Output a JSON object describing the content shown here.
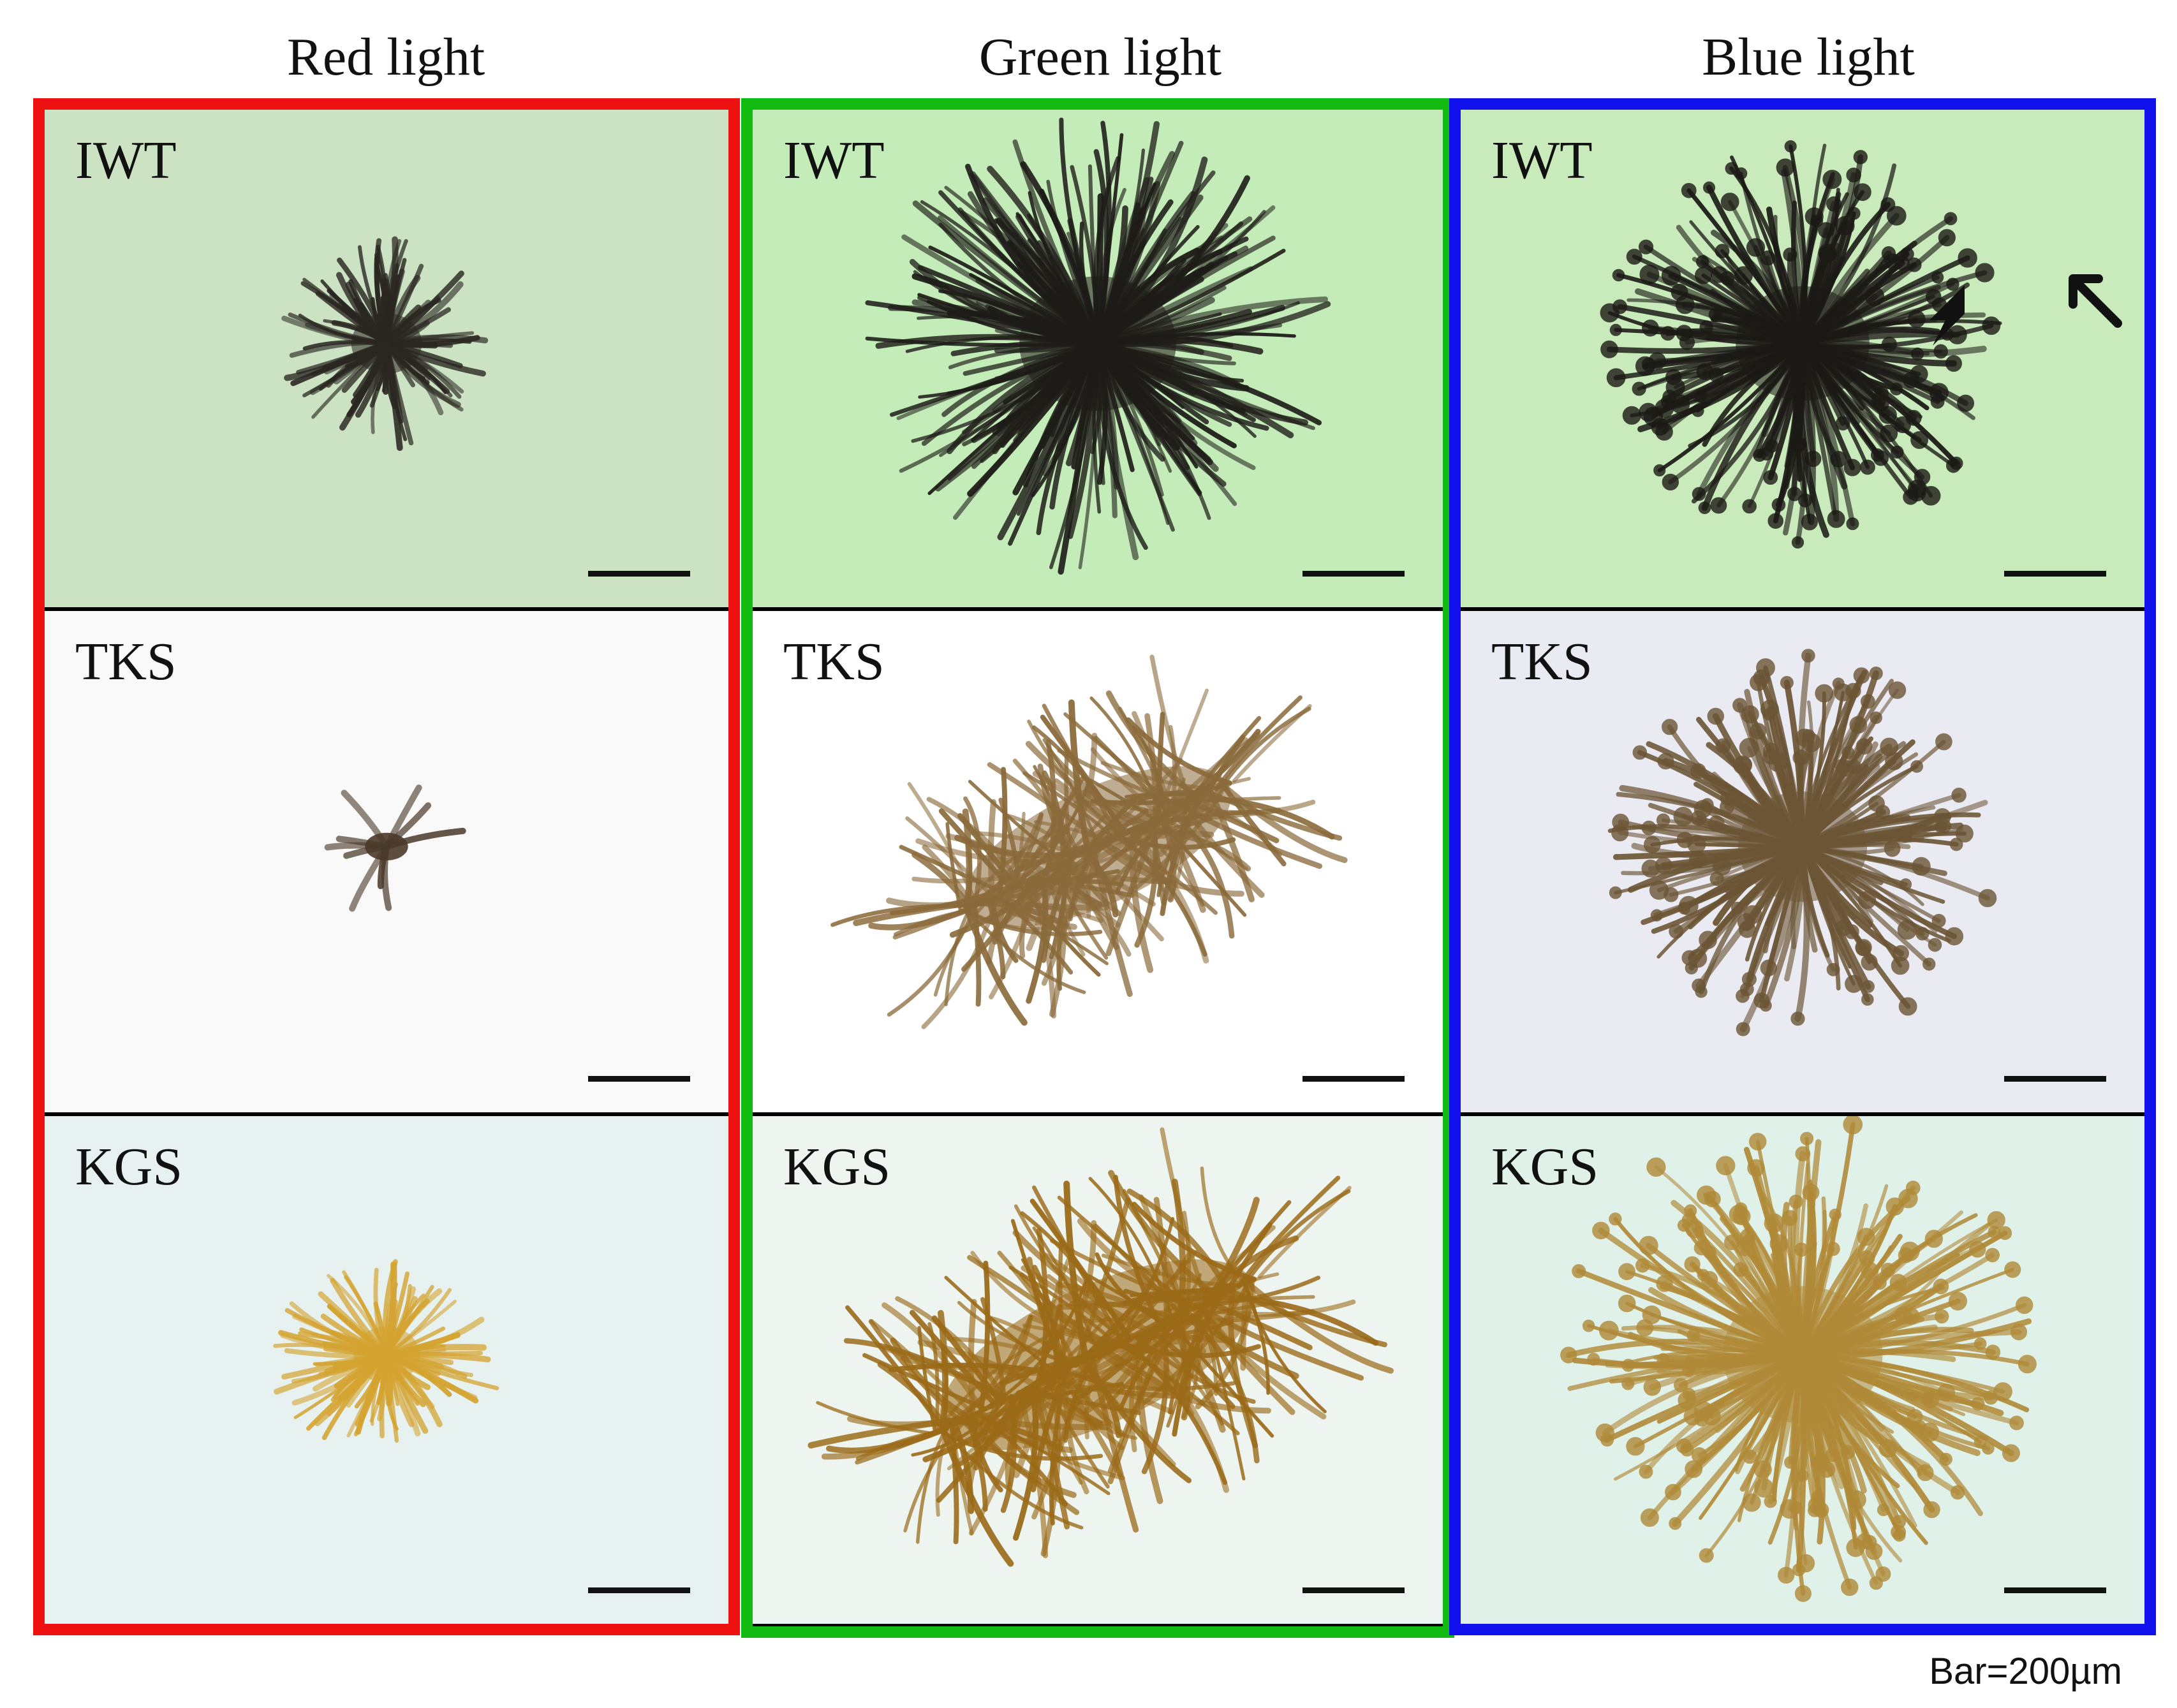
{
  "columns": [
    {
      "key": "red",
      "title": "Red light",
      "frame_color": "#ee1111"
    },
    {
      "key": "green",
      "title": "Green light",
      "frame_color": "#11bb11"
    },
    {
      "key": "blue",
      "title": "Blue light",
      "frame_color": "#1111ee"
    }
  ],
  "rows": [
    "IWT",
    "TKS",
    "KGS"
  ],
  "panels": [
    {
      "label": "IWT",
      "bg": "#cbe3c2",
      "specimen": {
        "kind": "radial",
        "color": "#2a2621",
        "intensity": 0.25
      }
    },
    {
      "label": "TKS",
      "bg": "#f9f9f9",
      "specimen": {
        "kind": "clump",
        "color": "#4a3a2a",
        "intensity": 0.1
      }
    },
    {
      "label": "KGS",
      "bg": "#e6f1f0",
      "specimen": {
        "kind": "tangle",
        "color": "#d4a330",
        "intensity": 0.2
      }
    },
    {
      "label": "IWT",
      "bg": "#c4ecb9",
      "specimen": {
        "kind": "radial",
        "color": "#1e1c18",
        "intensity": 1.0
      }
    },
    {
      "label": "TKS",
      "bg": "#ffffff",
      "specimen": {
        "kind": "elongated",
        "color": "#8a6a3a",
        "intensity": 0.8
      }
    },
    {
      "label": "KGS",
      "bg": "#eef4f0",
      "specimen": {
        "kind": "elongated",
        "color": "#9a6a18",
        "intensity": 1.0
      }
    },
    {
      "label": "IWT",
      "bg": "#c9ebbb",
      "specimen": {
        "kind": "bulbous",
        "color": "#1c1a16",
        "intensity": 0.8
      }
    },
    {
      "label": "TKS",
      "bg": "#eaeaf3",
      "specimen": {
        "kind": "bulbous",
        "color": "#6b5535",
        "intensity": 0.75
      }
    },
    {
      "label": "KGS",
      "bg": "#e0f1ea",
      "specimen": {
        "kind": "bulbous",
        "color": "#b08a38",
        "intensity": 1.0
      }
    }
  ],
  "arrow_icon": "black-arrow-pointing-down-left",
  "caption": "Bar=200µm"
}
